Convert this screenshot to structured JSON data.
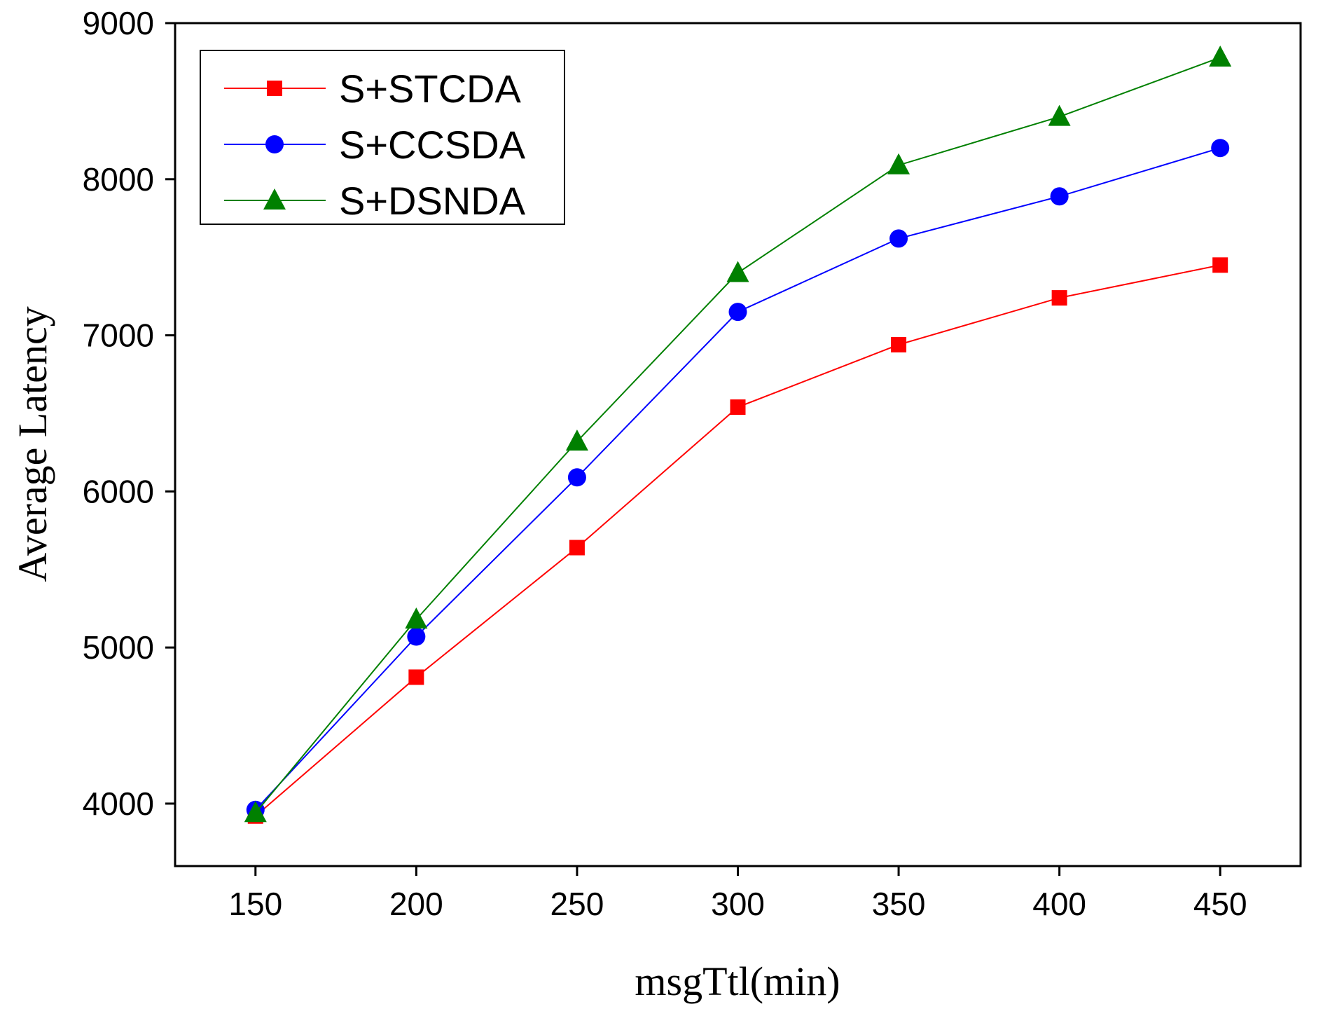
{
  "chart_data": {
    "type": "line",
    "xlabel": "msgTtl(min)",
    "ylabel": "Average Latency",
    "x": [
      150,
      200,
      250,
      300,
      350,
      400,
      450
    ],
    "xlim": [
      125,
      475
    ],
    "ylim": [
      3600,
      9000
    ],
    "xticks": [
      150,
      200,
      250,
      300,
      350,
      400,
      450
    ],
    "yticks": [
      4000,
      5000,
      6000,
      7000,
      8000,
      9000
    ],
    "grid": false,
    "legend_position": "top-left",
    "series": [
      {
        "name": "S+STCDA",
        "color": "#ff0000",
        "marker": "square",
        "values": [
          3920,
          4810,
          5640,
          6540,
          6940,
          7240,
          7450
        ]
      },
      {
        "name": "S+CCSDA",
        "color": "#0000ff",
        "marker": "circle",
        "values": [
          3960,
          5070,
          6090,
          7150,
          7620,
          7890,
          8200
        ]
      },
      {
        "name": "S+DSNDA",
        "color": "#008000",
        "marker": "triangle",
        "values": [
          3940,
          5180,
          6320,
          7400,
          8090,
          8400,
          8780
        ]
      }
    ]
  }
}
